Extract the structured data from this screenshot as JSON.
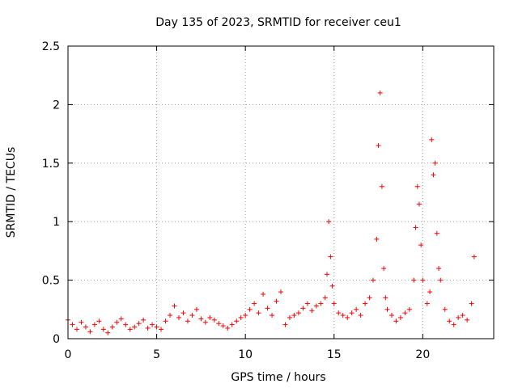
{
  "chart_data": {
    "type": "scatter",
    "title": "Day 135 of 2023, SRMTID for receiver ceu1",
    "xlabel": "GPS time / hours",
    "ylabel": "SRMTID / TECUs",
    "xlim": [
      0,
      24
    ],
    "ylim": [
      0,
      2.5
    ],
    "xticks": [
      0,
      5,
      10,
      15,
      20
    ],
    "xtick_labels": [
      "0",
      "5",
      "10",
      "15",
      "20"
    ],
    "yticks": [
      0,
      0.5,
      1,
      1.5,
      2,
      2.5
    ],
    "ytick_labels": [
      "0",
      "0.5",
      "1",
      "1.5",
      "2",
      "2.5"
    ],
    "grid": true,
    "marker": "+",
    "series": [
      {
        "name": "SRMTID",
        "color": "#ff0000",
        "x": [
          0.0,
          0.25,
          0.5,
          0.75,
          1.0,
          1.25,
          1.5,
          1.75,
          2.0,
          2.25,
          2.5,
          2.75,
          3.0,
          3.25,
          3.5,
          3.75,
          4.0,
          4.25,
          4.5,
          4.75,
          5.0,
          5.25,
          5.5,
          5.75,
          6.0,
          6.25,
          6.5,
          6.75,
          7.0,
          7.25,
          7.5,
          7.75,
          8.0,
          8.25,
          8.5,
          8.75,
          9.0,
          9.25,
          9.5,
          9.75,
          10.0,
          10.25,
          10.5,
          10.75,
          11.0,
          11.25,
          11.5,
          11.75,
          12.0,
          12.25,
          12.5,
          12.75,
          13.0,
          13.25,
          13.5,
          13.75,
          14.0,
          14.25,
          14.5,
          14.6,
          14.7,
          14.8,
          14.9,
          15.0,
          15.25,
          15.5,
          15.75,
          16.0,
          16.25,
          16.5,
          16.75,
          17.0,
          17.2,
          17.4,
          17.5,
          17.6,
          17.7,
          17.8,
          17.9,
          18.0,
          18.25,
          18.5,
          18.75,
          19.0,
          19.25,
          19.5,
          19.6,
          19.7,
          19.8,
          19.9,
          20.0,
          20.25,
          20.4,
          20.5,
          20.6,
          20.7,
          20.8,
          20.9,
          21.0,
          21.25,
          21.5,
          21.75,
          22.0,
          22.25,
          22.5,
          22.75,
          22.9
        ],
        "y": [
          0.16,
          0.12,
          0.08,
          0.14,
          0.1,
          0.06,
          0.12,
          0.15,
          0.08,
          0.05,
          0.1,
          0.14,
          0.17,
          0.12,
          0.08,
          0.1,
          0.13,
          0.16,
          0.09,
          0.12,
          0.1,
          0.08,
          0.15,
          0.2,
          0.28,
          0.18,
          0.22,
          0.15,
          0.2,
          0.25,
          0.17,
          0.14,
          0.18,
          0.16,
          0.13,
          0.11,
          0.09,
          0.12,
          0.15,
          0.18,
          0.2,
          0.25,
          0.3,
          0.22,
          0.38,
          0.26,
          0.2,
          0.32,
          0.4,
          0.12,
          0.18,
          0.2,
          0.22,
          0.26,
          0.3,
          0.24,
          0.28,
          0.3,
          0.35,
          0.55,
          1.0,
          0.7,
          0.45,
          0.3,
          0.22,
          0.2,
          0.18,
          0.22,
          0.25,
          0.2,
          0.3,
          0.35,
          0.5,
          0.85,
          1.65,
          2.1,
          1.3,
          0.6,
          0.35,
          0.25,
          0.2,
          0.15,
          0.18,
          0.22,
          0.25,
          0.5,
          0.95,
          1.3,
          1.15,
          0.8,
          0.5,
          0.3,
          0.4,
          1.7,
          1.4,
          1.5,
          0.9,
          0.6,
          0.5,
          0.25,
          0.15,
          0.12,
          0.18,
          0.2,
          0.16,
          0.3,
          0.7
        ]
      }
    ]
  }
}
